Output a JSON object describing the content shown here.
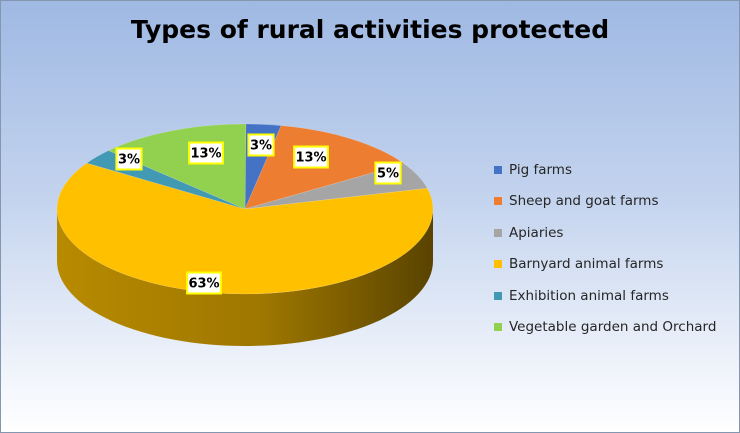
{
  "chart_data": {
    "type": "pie",
    "title": "Types of rural activities protected",
    "slices": [
      {
        "name": "Pig farms",
        "value": 3,
        "label": "3%",
        "color": "#4472c4"
      },
      {
        "name": "Sheep and goat farms",
        "value": 13,
        "label": "13%",
        "color": "#ed7d31"
      },
      {
        "name": "Apiaries",
        "value": 5,
        "label": "5%",
        "color": "#a5a5a5"
      },
      {
        "name": "Barnyard animal farms",
        "value": 63,
        "label": "63%",
        "color": "#ffc000"
      },
      {
        "name": "Exhibition animal farms",
        "value": 3,
        "label": "3%",
        "color": "#4299b4"
      },
      {
        "name": "Vegetable garden and Orchard",
        "value": 13,
        "label": "13%",
        "color": "#92d050"
      }
    ],
    "legend_position": "right",
    "style": "3d-pie"
  }
}
